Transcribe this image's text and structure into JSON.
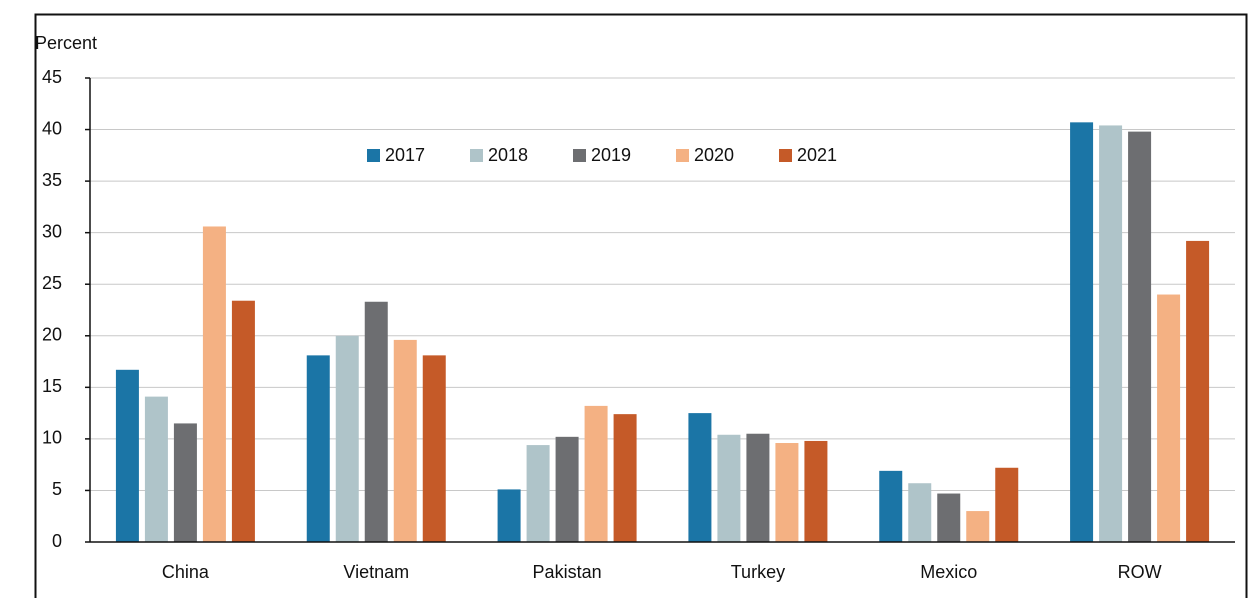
{
  "chart_data": {
    "type": "bar",
    "y_label": "Percent",
    "categories": [
      "China",
      "Vietnam",
      "Pakistan",
      "Turkey",
      "Mexico",
      "ROW"
    ],
    "series": [
      {
        "name": "2017",
        "color": "#1b75a6",
        "values": [
          16.7,
          18.1,
          5.1,
          12.5,
          6.9,
          40.7
        ]
      },
      {
        "name": "2018",
        "color": "#afc4c9",
        "values": [
          14.1,
          20.0,
          9.4,
          10.4,
          5.7,
          40.4
        ]
      },
      {
        "name": "2019",
        "color": "#6d6e71",
        "values": [
          11.5,
          23.3,
          10.2,
          10.5,
          4.7,
          39.8
        ]
      },
      {
        "name": "2020",
        "color": "#f4b183",
        "values": [
          30.6,
          19.6,
          13.2,
          9.6,
          3.0,
          24.0
        ]
      },
      {
        "name": "2021",
        "color": "#c55a28",
        "values": [
          23.4,
          18.1,
          12.4,
          9.8,
          7.2,
          29.2
        ]
      }
    ],
    "ylim": [
      0,
      45
    ],
    "yticks": [
      0,
      5,
      10,
      15,
      20,
      25,
      30,
      35,
      40,
      45
    ],
    "grid": true,
    "legend": "top-center"
  }
}
